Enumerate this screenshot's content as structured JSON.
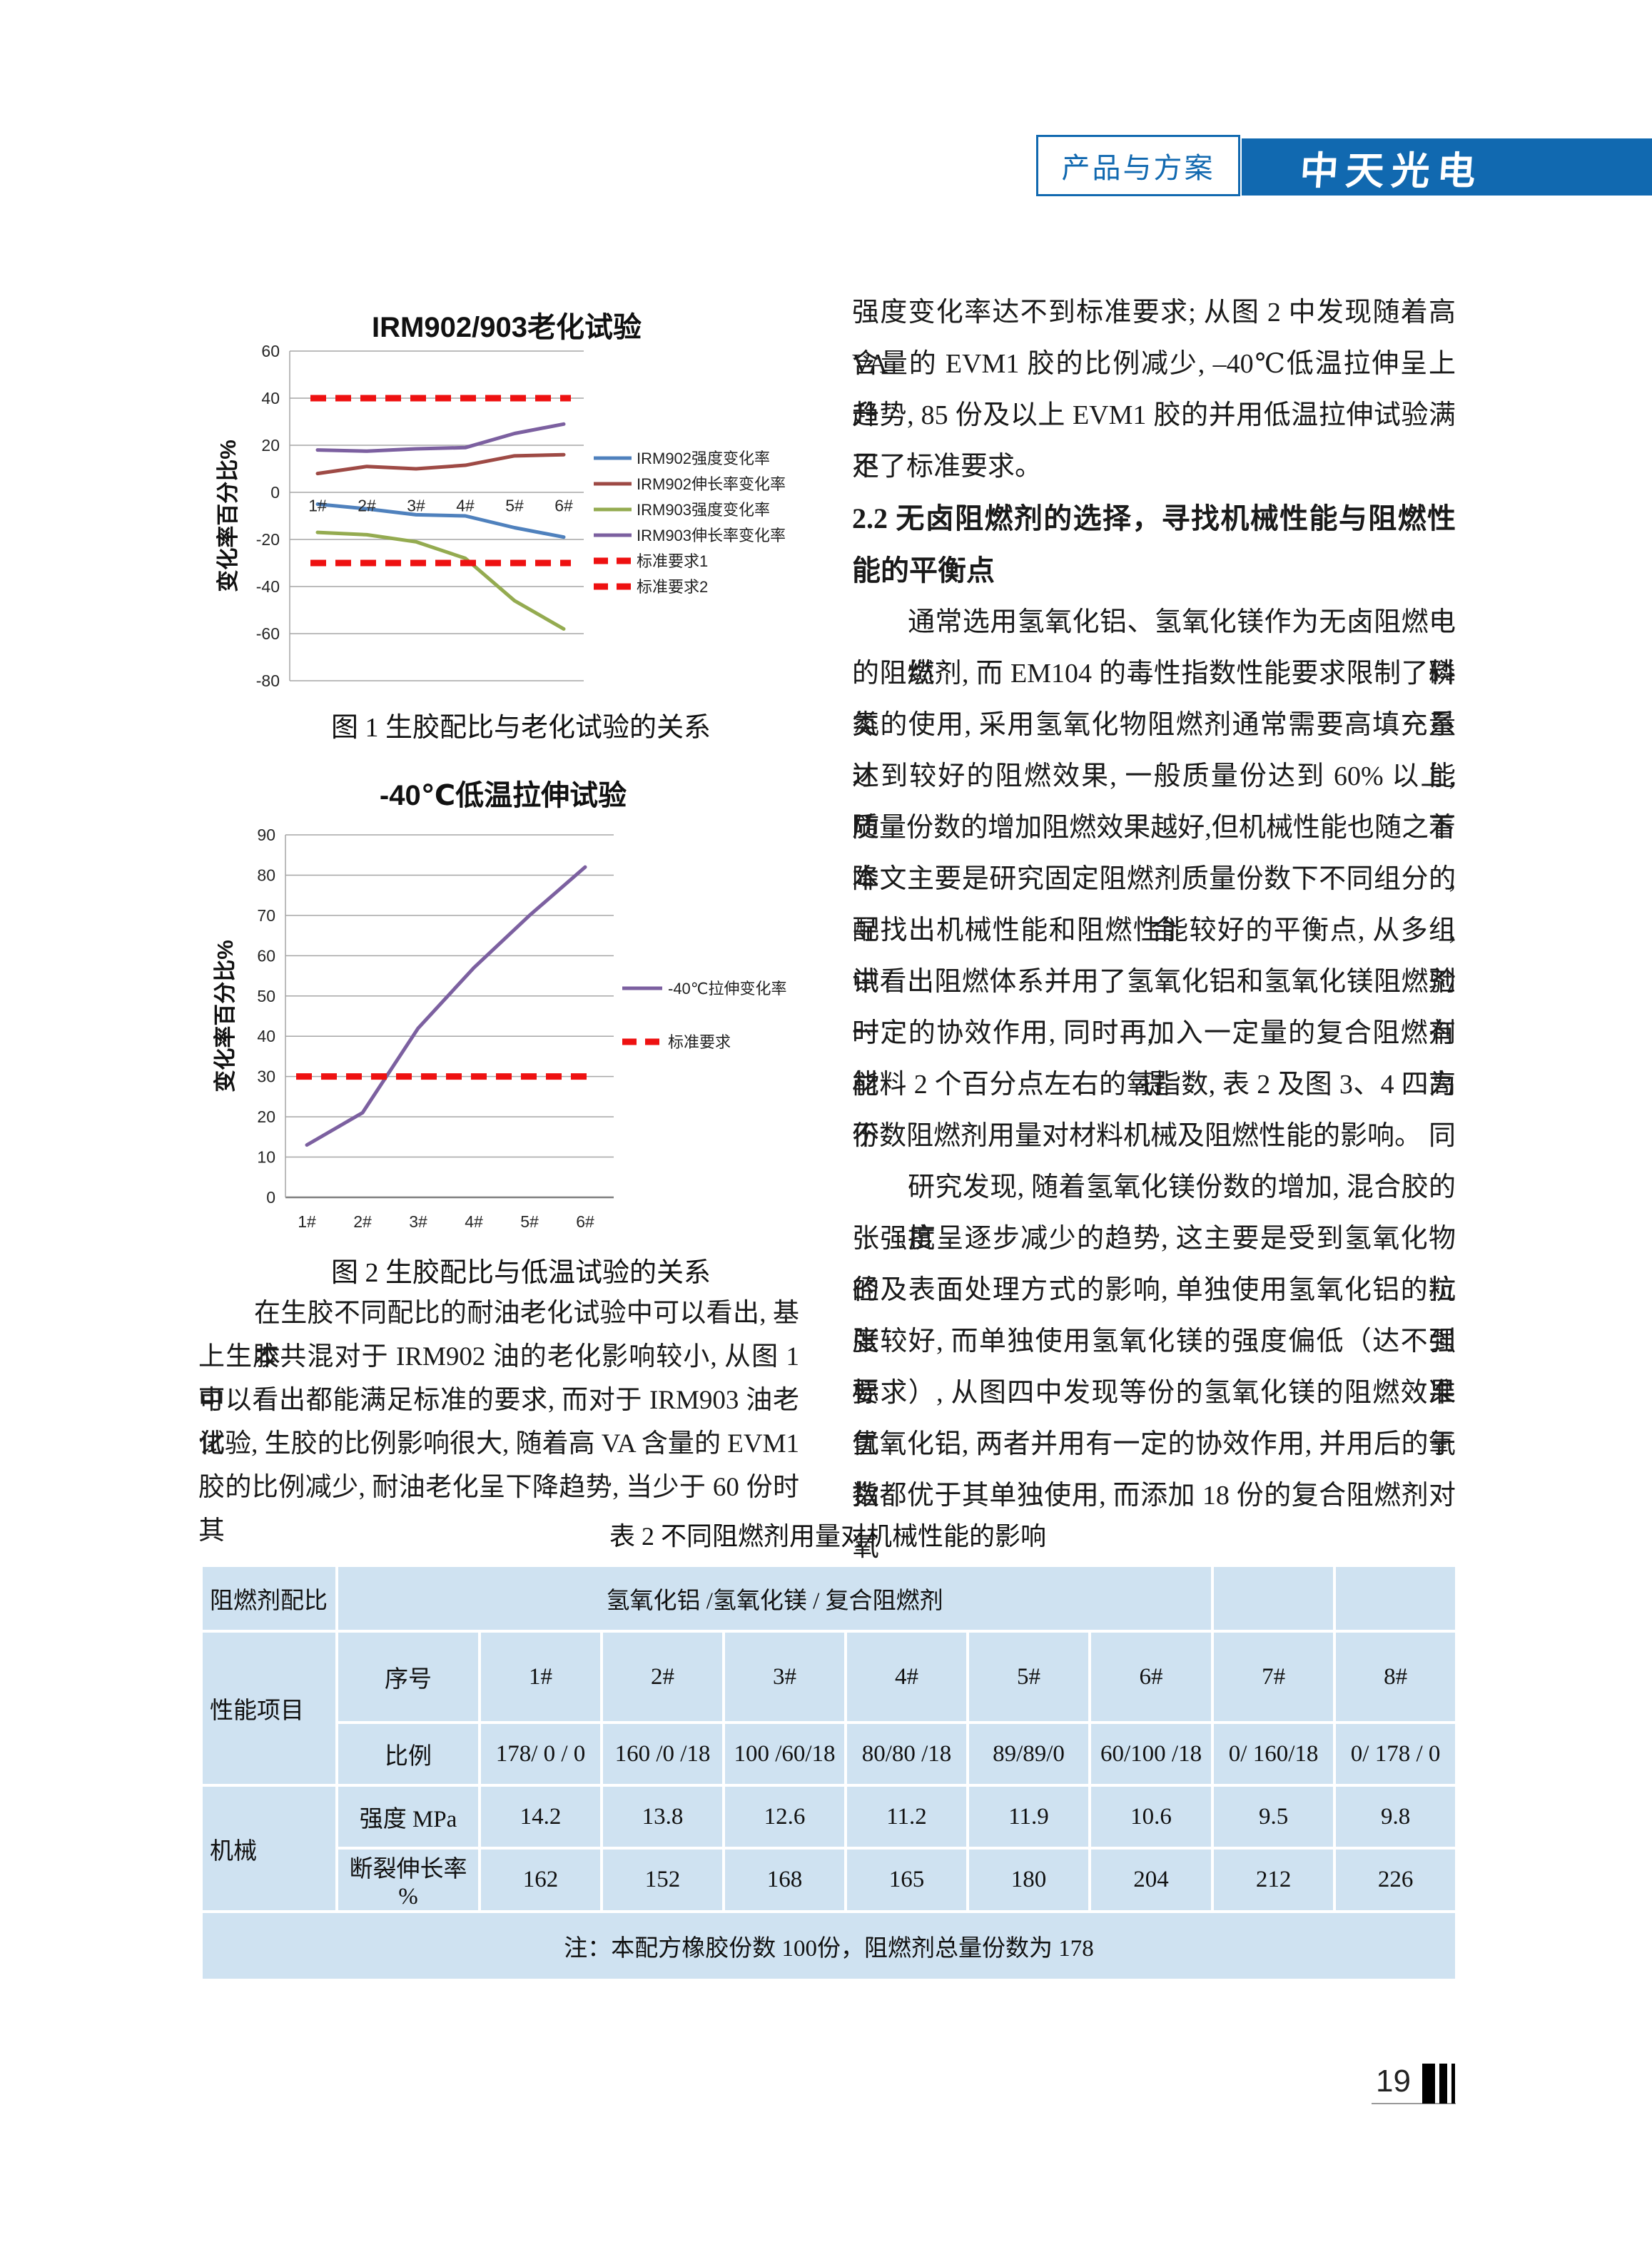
{
  "header": {
    "section_label": "产品与方案",
    "brand": "中天光电",
    "accent_color": "#1169b0"
  },
  "figure1": {
    "caption": "图 1  生胶配比与老化试验的关系"
  },
  "figure2": {
    "caption": "图 2 生胶配比与低温试验的关系"
  },
  "chart_data": [
    {
      "type": "line",
      "title": "IRM902/903老化试验",
      "ylabel": "变化率百分比%",
      "xlabel": "",
      "categories": [
        "1#",
        "2#",
        "3#",
        "4#",
        "5#",
        "6#"
      ],
      "ylim": [
        -80,
        60
      ],
      "ytick_step": 20,
      "grid": true,
      "legend_position": "right",
      "series": [
        {
          "name": "IRM902强度变化率",
          "color": "#4f81bd",
          "dash": false,
          "values": [
            -5,
            -7,
            -9.5,
            -10,
            -15,
            -19
          ]
        },
        {
          "name": "IRM902伸长率变化率",
          "color": "#9e4a45",
          "dash": false,
          "values": [
            8,
            11,
            10,
            11.5,
            15.5,
            16
          ]
        },
        {
          "name": "IRM903强度变化率",
          "color": "#94ab50",
          "dash": false,
          "values": [
            -17,
            -18,
            -21,
            -28,
            -46,
            -58
          ]
        },
        {
          "name": "IRM903伸长率变化率",
          "color": "#7c60a0",
          "dash": false,
          "values": [
            18,
            17.5,
            18.5,
            19,
            25,
            29
          ]
        },
        {
          "name": "标准要求1",
          "color": "#ee1111",
          "dash": true,
          "values": [
            40,
            40,
            40,
            40,
            40,
            40
          ]
        },
        {
          "name": "标准要求2",
          "color": "#ee1111",
          "dash": true,
          "values": [
            -30,
            -30,
            -30,
            -30,
            -30,
            -30
          ]
        }
      ]
    },
    {
      "type": "line",
      "title": "-40℃低温拉伸试验",
      "ylabel": "变化率百分比%",
      "xlabel": "",
      "categories": [
        "1#",
        "2#",
        "3#",
        "4#",
        "5#",
        "6#"
      ],
      "ylim": [
        0,
        90
      ],
      "ytick_step": 10,
      "grid": true,
      "legend_position": "right",
      "series": [
        {
          "name": "-40℃拉伸变化率",
          "color": "#7c60a0",
          "dash": false,
          "values": [
            13,
            21,
            42,
            57,
            70,
            82
          ]
        },
        {
          "name": "标准要求",
          "color": "#ee1111",
          "dash": true,
          "values": [
            30,
            30,
            30,
            30,
            30,
            30
          ]
        }
      ]
    }
  ],
  "left_column": {
    "para_lines": [
      "在生胶不同配比的耐油老化试验中可以看出, 基本",
      "上生胶共混对于 IRM902 油的老化影响较小, 从图 1 中",
      "可以看出都能满足标准的要求, 而对于 IRM903 油老化",
      "试验, 生胶的比例影响很大, 随着高 VA 含量的 EVM1",
      "胶的比例减少, 耐油老化呈下降趋势, 当少于 60 份时其"
    ]
  },
  "right_column": {
    "para1_lines": [
      "强度变化率达不到标准要求; 从图 2 中发现随着高 VA",
      "含量的 EVM1 胶的比例减少,  –40℃低温拉伸呈上升",
      "趋势, 85 份及以上 EVM1 胶的并用低温拉伸试验满足",
      "不了标准要求。"
    ],
    "heading_lines": [
      "2.2 无卤阻燃剂的选择，寻找机械性能与阻燃性",
      "能的平衡点"
    ],
    "para2_lines": [
      "通常选用氢氧化铝、氢氧化镁作为无卤阻燃电缆料",
      "的阻燃剂, 而 EM104 的毒性指数性能要求限制了磷氮系",
      "类的使用, 采用氢氧化物阻燃剂通常需要高填充量才能",
      "达到较好的阻燃效果, 一般质量份达到 60% 以上, 随着",
      "质量份数的增加阻燃效果越好,但机械性能也随之下降,",
      "本文主要是研究固定阻燃剂质量份数下不同组分的配合,",
      "寻找出机械性能和阻燃性能较好的平衡点, 从多组试验",
      "中看出阻燃体系并用了氢氧化铝和氢氧化镁阻燃剂时, 有",
      "一定的协效作用, 同时再加入一定量的复合阻燃剂能提高",
      "材料 2 个百分点左右的氧指数, 表 2 及图 3、4 四为不同",
      "份数阻燃剂用量对材料机械及阻燃性能的影响。"
    ],
    "para3_lines": [
      "研究发现, 随着氢氧化镁份数的增加, 混合胶的抗",
      "张强度呈逐步减少的趋势, 这主要是受到氢氧化物的粒",
      "径及表面处理方式的影响, 单独使用氢氧化铝的抗张强",
      "度较好, 而单独使用氢氧化镁的强度偏低（达不到标准",
      "要求）, 从图四中发现等份的氢氧化镁的阻燃效果优于",
      "氢氧化铝, 两者并用有一定的协效作用, 并用后的氧指",
      "数都优于其单独使用, 而添加 18 份的复合阻燃剂对氧"
    ]
  },
  "table": {
    "title": "表 2  不同阻燃剂用量对机械性能的影响",
    "header_col": "阻燃剂配比",
    "header_span": "氢氧化铝 /氢氧化镁 / 复合阻燃剂",
    "row_group1": "性能项目",
    "row_group2": "机械",
    "row_labels": [
      "序号",
      "比例",
      "强度 MPa",
      "断裂伸长率 %"
    ],
    "serial": [
      "1#",
      "2#",
      "3#",
      "4#",
      "5#",
      "6#",
      "7#",
      "8#"
    ],
    "ratio": [
      "178/ 0 / 0",
      "160 /0 /18",
      "100 /60/18",
      "80/80 /18",
      "89/89/0",
      "60/100 /18",
      "0/ 160/18",
      "0/ 178 / 0"
    ],
    "strength": [
      "14.2",
      "13.8",
      "12.6",
      "11.2",
      "11.9",
      "10.6",
      "9.5",
      "9.8"
    ],
    "elongation": [
      "162",
      "152",
      "168",
      "165",
      "180",
      "204",
      "212",
      "226"
    ],
    "note": "注：本配方橡胶份数 100份，阻燃剂总量份数为 178",
    "bg_color": "#cfe2f1"
  },
  "footer": {
    "page_number": "19"
  }
}
